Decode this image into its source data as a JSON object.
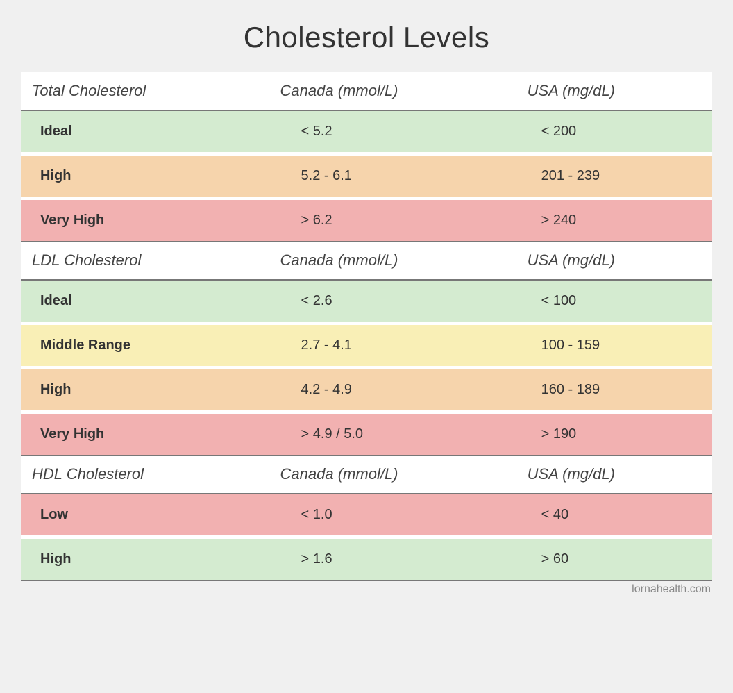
{
  "title": "Cholesterol Levels",
  "footer": "lornahealth.com",
  "colors": {
    "green": "#d4ebd0",
    "yellow": "#f9efb6",
    "orange": "#f6d4ac",
    "red": "#f2b1b1",
    "page_bg": "#f0f0f0",
    "row_bg_white": "#ffffff",
    "text": "#333333",
    "header_text": "#444444",
    "border_top": "#555555",
    "border_bottom": "#777777",
    "footer_text": "#888888"
  },
  "typography": {
    "title_fontsize": 42,
    "header_fontsize": 22,
    "row_fontsize": 20,
    "footer_fontsize": 16
  },
  "sections": [
    {
      "headers": [
        "Total Cholesterol",
        "Canada (mmol/L)",
        "USA (mg/dL)"
      ],
      "top_border": true,
      "rows": [
        {
          "label": "Ideal",
          "canada": "< 5.2",
          "usa": "< 200",
          "color": "green"
        },
        {
          "label": "High",
          "canada": "5.2 - 6.1",
          "usa": "201 - 239",
          "color": "orange"
        },
        {
          "label": "Very High",
          "canada": "> 6.2",
          "usa": "> 240",
          "color": "red"
        }
      ]
    },
    {
      "headers": [
        "LDL Cholesterol",
        "Canada (mmol/L)",
        "USA (mg/dL)"
      ],
      "top_border": false,
      "rows": [
        {
          "label": "Ideal",
          "canada": "< 2.6",
          "usa": "< 100",
          "color": "green"
        },
        {
          "label": "Middle Range",
          "canada": "2.7 - 4.1",
          "usa": "100 - 159",
          "color": "yellow"
        },
        {
          "label": "High",
          "canada": "4.2 - 4.9",
          "usa": "160 - 189",
          "color": "orange"
        },
        {
          "label": "Very High",
          "canada": "> 4.9 / 5.0",
          "usa": "> 190",
          "color": "red"
        }
      ]
    },
    {
      "headers": [
        "HDL Cholesterol",
        "Canada (mmol/L)",
        "USA (mg/dL)"
      ],
      "top_border": false,
      "rows": [
        {
          "label": "Low",
          "canada": "< 1.0",
          "usa": "< 40",
          "color": "red"
        },
        {
          "label": "High",
          "canada": "> 1.6",
          "usa": "> 60",
          "color": "green"
        }
      ]
    }
  ]
}
